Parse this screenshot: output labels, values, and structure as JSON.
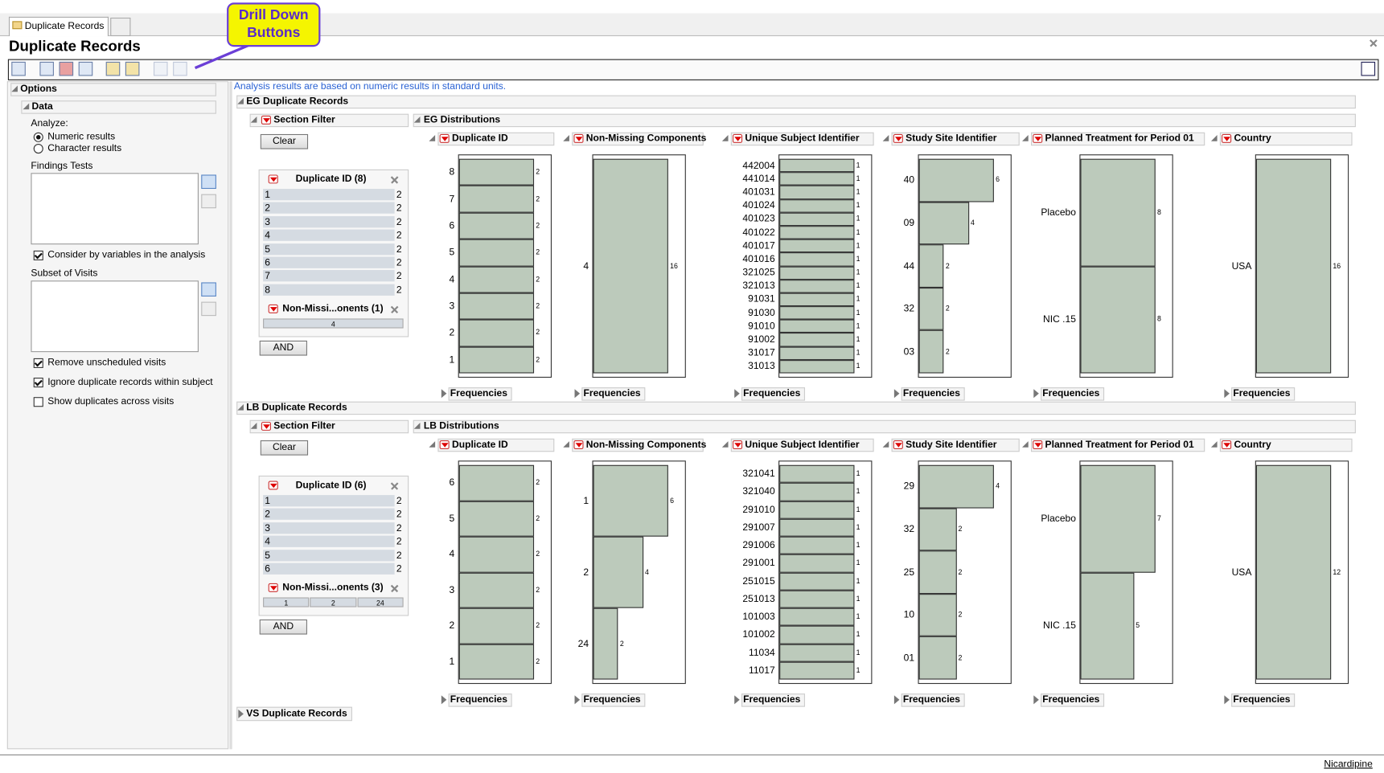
{
  "tabs": [
    "Duplicate Records"
  ],
  "title": "Duplicate Records",
  "callout": "Drill Down Buttons",
  "options": {
    "title": "Options",
    "data_title": "Data",
    "analyze_label": "Analyze:",
    "analyze_options": [
      {
        "label": "Numeric results",
        "selected": true
      },
      {
        "label": "Character results",
        "selected": false
      }
    ],
    "findings_tests": "Findings Tests",
    "consider": {
      "label": "Consider by variables in the analysis",
      "checked": true
    },
    "subset_of_visits": "Subset of Visits",
    "checks": [
      {
        "label": "Remove unscheduled visits",
        "checked": true
      },
      {
        "label": "Ignore duplicate records within subject",
        "checked": true
      },
      {
        "label": "Show duplicates across visits",
        "checked": false
      }
    ]
  },
  "note": "Analysis results are based on numeric results in standard units.",
  "sections": [
    {
      "title": "EG Duplicate Records",
      "filter": {
        "title": "Section Filter",
        "clear": "Clear",
        "and": "AND",
        "lists": [
          {
            "title": "Duplicate ID (8)",
            "items": [
              "1",
              "2",
              "3",
              "4",
              "5",
              "6",
              "7",
              "8"
            ],
            "counts": [
              2,
              2,
              2,
              2,
              2,
              2,
              2,
              2
            ]
          },
          {
            "title": "Non-Missi...onents (1)",
            "items": [
              "4"
            ]
          }
        ]
      },
      "distributions": {
        "title": "EG Distributions",
        "charts": [
          {
            "type": "bar",
            "title": "Duplicate ID",
            "categories": [
              "8",
              "7",
              "6",
              "5",
              "4",
              "3",
              "2",
              "1"
            ],
            "values": [
              2,
              2,
              2,
              2,
              2,
              2,
              2,
              2
            ],
            "footer": "Frequencies"
          },
          {
            "type": "bar",
            "title": "Non-Missing Components",
            "categories": [
              "4"
            ],
            "values": [
              16
            ],
            "footer": "Frequencies"
          },
          {
            "type": "bar",
            "title": "Unique Subject Identifier",
            "categories": [
              "442004",
              "441014",
              "401031",
              "401024",
              "401023",
              "401022",
              "401017",
              "401016",
              "321025",
              "321013",
              "91031",
              "91030",
              "91010",
              "91002",
              "31017",
              "31013"
            ],
            "values": [
              1,
              1,
              1,
              1,
              1,
              1,
              1,
              1,
              1,
              1,
              1,
              1,
              1,
              1,
              1,
              1
            ],
            "footer": "Frequencies"
          },
          {
            "type": "bar",
            "title": "Study Site Identifier",
            "categories": [
              "40",
              "09",
              "44",
              "32",
              "03"
            ],
            "values": [
              6,
              4,
              2,
              2,
              2
            ],
            "footer": "Frequencies"
          },
          {
            "type": "bar",
            "title": "Planned Treatment for Period 01",
            "categories": [
              "Placebo",
              "NIC .15"
            ],
            "values": [
              8,
              8
            ],
            "footer": "Frequencies"
          },
          {
            "type": "bar",
            "title": "Country",
            "categories": [
              "USA"
            ],
            "values": [
              16
            ],
            "footer": "Frequencies"
          }
        ]
      }
    },
    {
      "title": "LB Duplicate Records",
      "filter": {
        "title": "Section Filter",
        "clear": "Clear",
        "and": "AND",
        "lists": [
          {
            "title": "Duplicate ID (6)",
            "items": [
              "1",
              "2",
              "3",
              "4",
              "5",
              "6"
            ],
            "counts": [
              2,
              2,
              2,
              2,
              2,
              2
            ]
          },
          {
            "title": "Non-Missi...onents (3)",
            "items": [
              "1",
              "2",
              "24"
            ]
          }
        ]
      },
      "distributions": {
        "title": "LB Distributions",
        "charts": [
          {
            "type": "bar",
            "title": "Duplicate ID",
            "categories": [
              "6",
              "5",
              "4",
              "3",
              "2",
              "1"
            ],
            "values": [
              2,
              2,
              2,
              2,
              2,
              2
            ],
            "footer": "Frequencies"
          },
          {
            "type": "bar",
            "title": "Non-Missing Components",
            "categories": [
              "1",
              "2",
              "24"
            ],
            "values": [
              6,
              4,
              2
            ],
            "footer": "Frequencies"
          },
          {
            "type": "bar",
            "title": "Unique Subject Identifier",
            "categories": [
              "321041",
              "321040",
              "291010",
              "291007",
              "291006",
              "291001",
              "251015",
              "251013",
              "101003",
              "101002",
              "11034",
              "11017"
            ],
            "values": [
              1,
              1,
              1,
              1,
              1,
              1,
              1,
              1,
              1,
              1,
              1,
              1
            ],
            "footer": "Frequencies"
          },
          {
            "type": "bar",
            "title": "Study Site Identifier",
            "categories": [
              "29",
              "32",
              "25",
              "10",
              "01"
            ],
            "values": [
              4,
              2,
              2,
              2,
              2
            ],
            "footer": "Frequencies"
          },
          {
            "type": "bar",
            "title": "Planned Treatment for Period 01",
            "categories": [
              "Placebo",
              "NIC .15"
            ],
            "values": [
              7,
              5
            ],
            "footer": "Frequencies"
          },
          {
            "type": "bar",
            "title": "Country",
            "categories": [
              "USA"
            ],
            "values": [
              12
            ],
            "footer": "Frequencies"
          }
        ]
      }
    }
  ],
  "collapsed_section": "VS Duplicate Records",
  "status": "Nicardipine"
}
